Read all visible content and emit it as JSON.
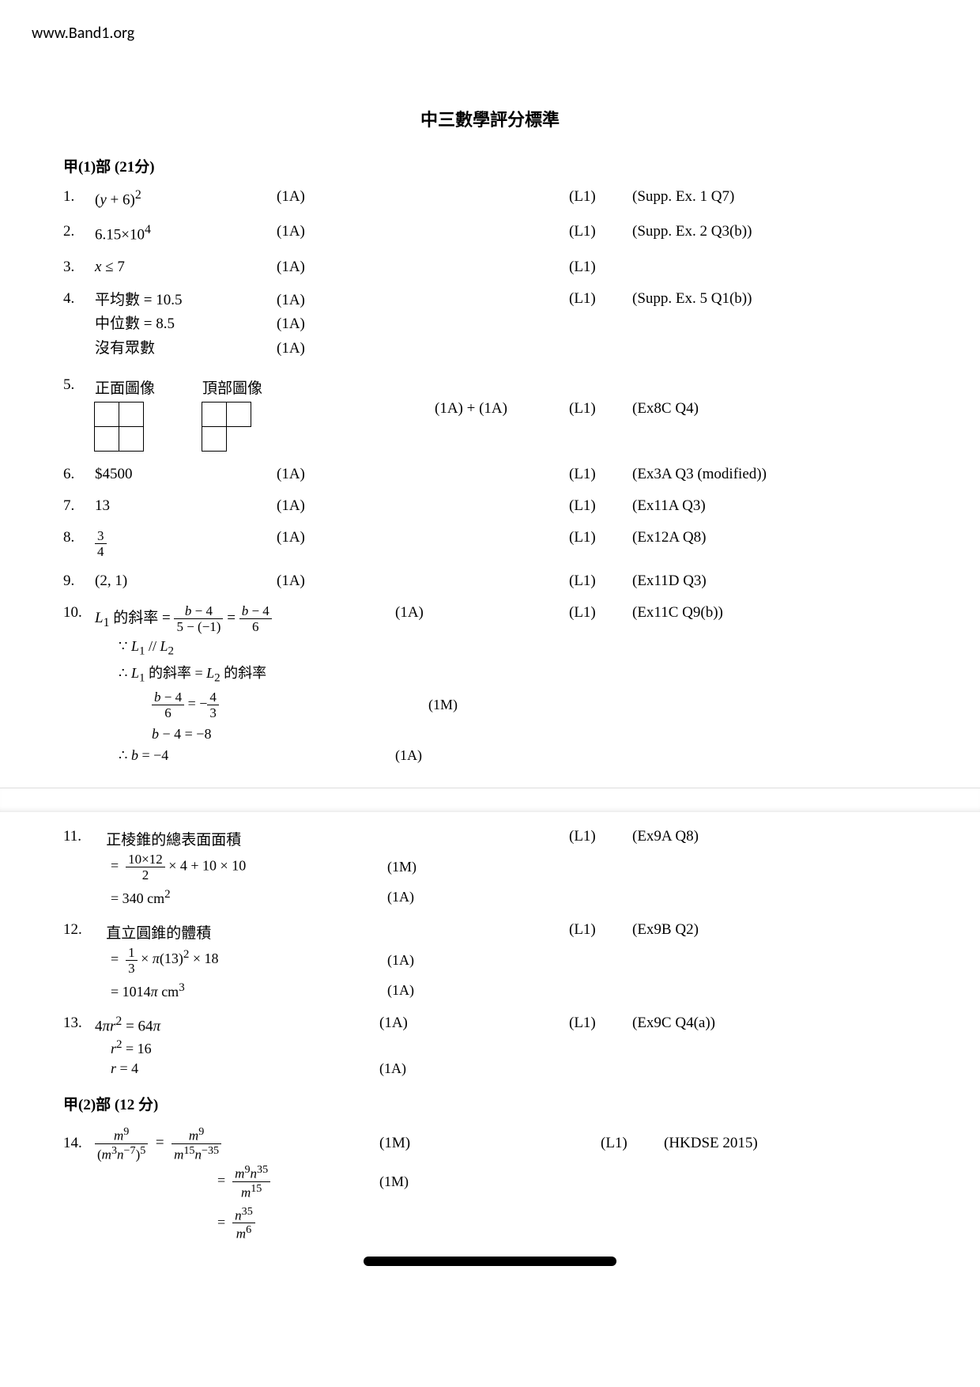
{
  "header_url": "www.Band1.org",
  "doc_title": "中三數學評分標準",
  "section1": "甲(1)部  (21分)",
  "section2": "甲(2)部  (12 分)",
  "q1": {
    "num": "1.",
    "ans_html": "(<i>y</i> + 6)<sup>2</sup>",
    "mark": "(1A)",
    "level": "(L1)",
    "ref": "(Supp. Ex. 1 Q7)"
  },
  "q2": {
    "num": "2.",
    "ans_html": "6.15×10<sup>4</sup>",
    "mark": "(1A)",
    "level": "(L1)",
    "ref": "(Supp. Ex. 2 Q3(b))"
  },
  "q3": {
    "num": "3.",
    "ans_html": "<i>x</i> ≤ 7",
    "mark": "(1A)",
    "level": "(L1)",
    "ref": ""
  },
  "q4": {
    "num": "4.",
    "lines": [
      "平均數  = 10.5",
      "中位數  = 8.5",
      "沒有眾數"
    ],
    "marks": [
      "(1A)",
      "(1A)",
      "(1A)"
    ],
    "level": "(L1)",
    "ref": "(Supp. Ex. 5 Q1(b))"
  },
  "q5": {
    "num": "5.",
    "label_front": "正面圖像",
    "label_top": "頂部圖像",
    "mark": "(1A)  + (1A)",
    "level": "(L1)",
    "ref": "(Ex8C Q4)",
    "grid_front": [
      [
        1,
        1
      ],
      [
        1,
        1
      ]
    ],
    "grid_top": [
      [
        1,
        1
      ],
      [
        1,
        0
      ]
    ]
  },
  "q6": {
    "num": "6.",
    "ans": "$4500",
    "mark": "(1A)",
    "level": "(L1)",
    "ref": "(Ex3A Q3 (modified))"
  },
  "q7": {
    "num": "7.",
    "ans": "13",
    "mark": "(1A)",
    "level": "(L1)",
    "ref": "(Ex11A Q3)"
  },
  "q8": {
    "num": "8.",
    "frac_num": "3",
    "frac_den": "4",
    "mark": "(1A)",
    "level": "(L1)",
    "ref": "(Ex12A Q8)"
  },
  "q9": {
    "num": "9.",
    "ans": "(2, 1)",
    "mark": "(1A)",
    "level": "(L1)",
    "ref": "(Ex11D Q3)"
  },
  "q10": {
    "num": "10.",
    "line1_pre": "<i>L</i><sub>1</sub> 的斜率  =  ",
    "f1_num": "<i>b</i> − 4",
    "f1_den": "5 − (−1)",
    "eq": "  =  ",
    "f2_num": "<i>b</i> − 4",
    "f2_den": "6",
    "mark1": "(1A)",
    "line2": "∵    <i>L</i><sub>1</sub> // <i>L</i><sub>2</sub>",
    "line3": "∴    <i>L</i><sub>1</sub> 的斜率  = <i>L</i><sub>2</sub> 的斜率",
    "f3_num": "<i>b</i> − 4",
    "f3_den": "6",
    "f4_num": "4",
    "f4_den": "3",
    "mark2": "(1M)",
    "line5": "<i>b</i> − 4 = −8",
    "line6": "∴    <i>b</i> = −4",
    "mark3": "(1A)",
    "level": "(L1)",
    "ref": "(Ex11C Q9(b))"
  },
  "q11": {
    "num": "11.",
    "title": "正棱錐的總表面面積",
    "f_num": "10×12",
    "f_den": "2",
    "tail": "× 4 + 10 × 10",
    "mark1": "(1M)",
    "result": "= 340 cm",
    "sup": "2",
    "mark2": "(1A)",
    "level": "(L1)",
    "ref": "(Ex9A Q8)"
  },
  "q12": {
    "num": "12.",
    "title": "直立圓錐的體積",
    "f_num": "1",
    "f_den": "3",
    "tail_html": "× <i>π</i>(13)<sup>2</sup> × 18",
    "mark1": "(1A)",
    "result_html": "=  1014<i>π</i>   cm<sup>3</sup>",
    "mark2": "(1A)",
    "level": "(L1)",
    "ref": "(Ex9B Q2)"
  },
  "q13": {
    "num": "13.",
    "line1_html": "4<i>πr</i><sup>2</sup> = 64<i>π</i>",
    "mark1": "(1A)",
    "line2_html": "<i>r</i><sup>2</sup> = 16",
    "line3_html": "<i>r</i> = 4",
    "mark3": "(1A)",
    "level": "(L1)",
    "ref": "(Ex9C Q4(a))"
  },
  "q14": {
    "num": "14.",
    "fL_num": "<i>m</i><sup>9</sup>",
    "fL_den": "(<i>m</i><sup>3</sup><i>n</i><sup>−7</sup>)<sup>5</sup>",
    "fR_num": "<i>m</i><sup>9</sup>",
    "fR_den": "<i>m</i><sup>15</sup><i>n</i><sup>−35</sup>",
    "mark1": "(1M)",
    "f2_num": "<i>m</i><sup>9</sup><i>n</i><sup>35</sup>",
    "f2_den": "<i>m</i><sup>15</sup>",
    "mark2": "(1M)",
    "f3_num": "<i>n</i><sup>35</sup>",
    "f3_den": "<i>m</i><sup>6</sup>",
    "level": "(L1)",
    "ref": "(HKDSE 2015)"
  }
}
